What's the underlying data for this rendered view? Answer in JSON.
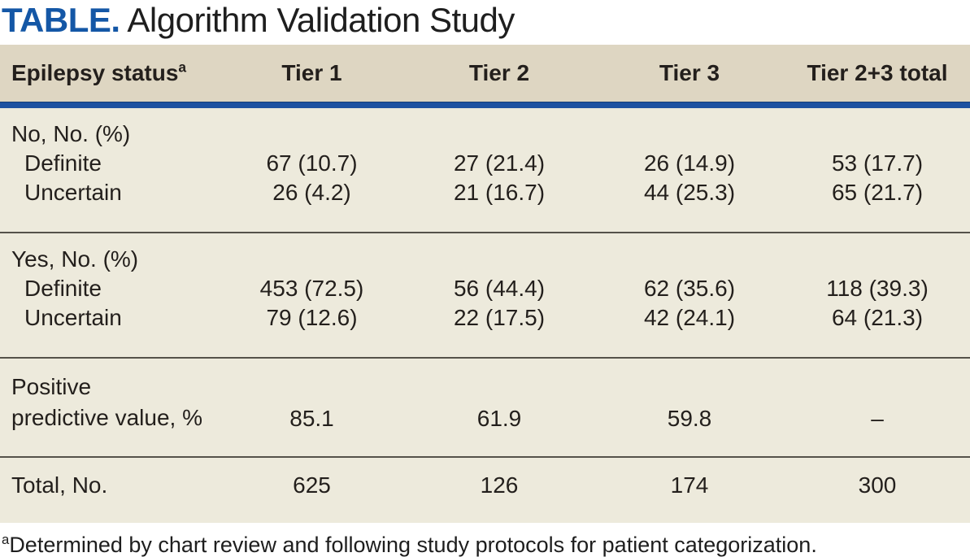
{
  "title": {
    "label": "TABLE.",
    "text": " Algorithm Validation Study"
  },
  "colors": {
    "title_blue": "#1457a6",
    "rule_blue": "#1e52a1",
    "header_bg": "#ded6c2",
    "body_bg": "#edeadc",
    "divider": "#55524a",
    "text": "#231f1c"
  },
  "table": {
    "header": {
      "label": "Epilepsy status",
      "label_superscript": "a",
      "columns": [
        "Tier 1",
        "Tier 2",
        "Tier 3",
        "Tier 2+3 total"
      ]
    },
    "sections": [
      {
        "name": "no",
        "rows": [
          {
            "label": "No, No. (%)",
            "values": [
              "",
              "",
              "",
              ""
            ]
          },
          {
            "label": "Definite",
            "values": [
              "67 (10.7)",
              "27 (21.4)",
              "26 (14.9)",
              "53 (17.7)"
            ]
          },
          {
            "label": "Uncertain",
            "values": [
              "26 (4.2)",
              "21 (16.7)",
              "44 (25.3)",
              "65 (21.7)"
            ]
          }
        ]
      },
      {
        "name": "yes",
        "rows": [
          {
            "label": "Yes, No. (%)",
            "values": [
              "",
              "",
              "",
              ""
            ]
          },
          {
            "label": "Definite",
            "values": [
              "453 (72.5)",
              "56 (44.4)",
              "62 (35.6)",
              "118 (39.3)"
            ]
          },
          {
            "label": "Uncertain",
            "values": [
              "79 (12.6)",
              "22 (17.5)",
              "42 (24.1)",
              "64 (21.3)"
            ]
          }
        ]
      },
      {
        "name": "ppv",
        "rows": [
          {
            "label_line1": "Positive",
            "label_line2": "predictive value, %",
            "values": [
              "85.1",
              "61.9",
              "59.8",
              "–"
            ]
          }
        ]
      },
      {
        "name": "total",
        "rows": [
          {
            "label": "Total, No.",
            "values": [
              "625",
              "126",
              "174",
              "300"
            ]
          }
        ]
      }
    ]
  },
  "footnote": {
    "marker": "a",
    "text": "Determined by chart review and following study protocols for patient categorization."
  }
}
